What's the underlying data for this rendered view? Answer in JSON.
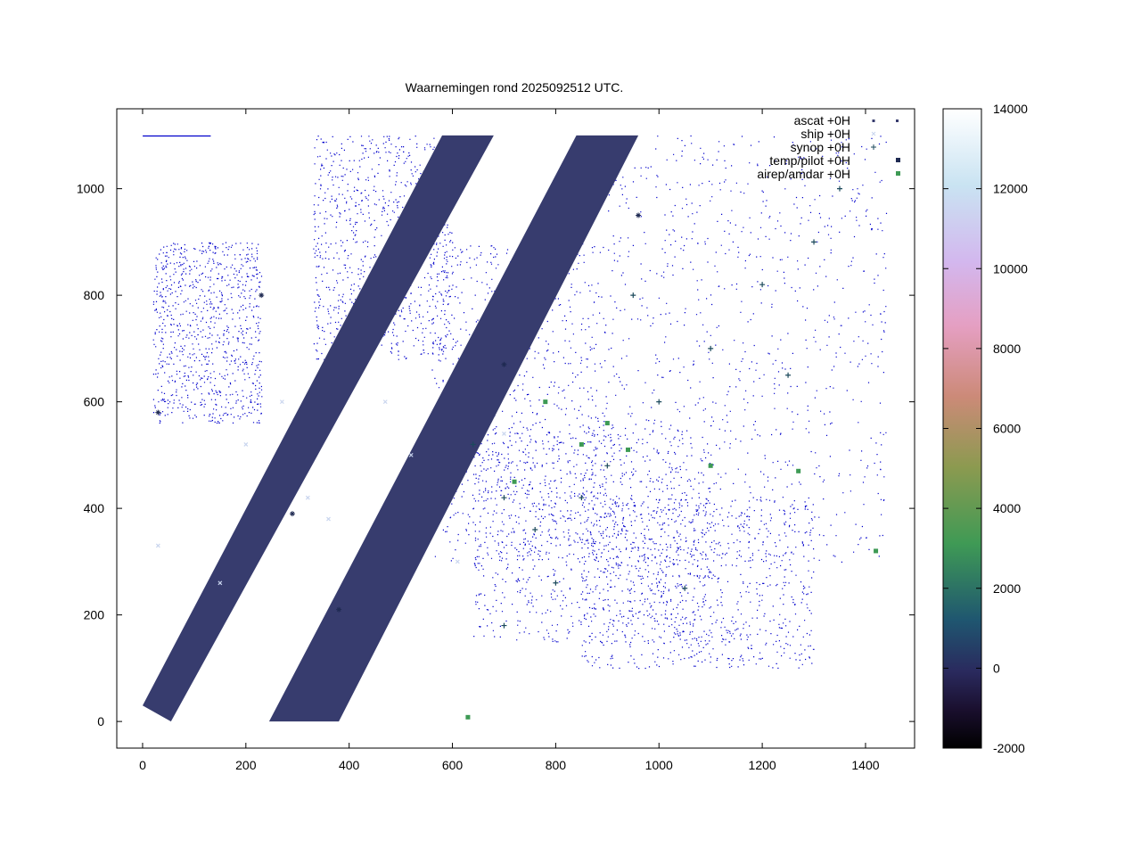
{
  "chart_data": {
    "type": "scatter",
    "title": "Waarnemingen rond 2025092512 UTC.",
    "xlabel": "",
    "ylabel": "",
    "xlim": [
      -50,
      1495
    ],
    "ylim": [
      -50,
      1150
    ],
    "xticks": [
      0,
      200,
      400,
      600,
      800,
      1000,
      1200,
      1400
    ],
    "yticks": [
      0,
      200,
      400,
      600,
      800,
      1000
    ],
    "grid": false,
    "legend_position": "top-right",
    "colorbar": {
      "range": [
        -2000,
        14000
      ],
      "ticks": [
        -2000,
        0,
        2000,
        4000,
        6000,
        8000,
        10000,
        12000,
        14000
      ],
      "palette": "cubehelix"
    },
    "series": [
      {
        "name": "ascat +0H",
        "marker": "dot",
        "color": "#373c6e",
        "swaths": [
          {
            "corners": [
              [
                0,
                30
              ],
              [
                55,
                0
              ],
              [
                680,
                1100
              ],
              [
                580,
                1100
              ]
            ]
          },
          {
            "corners": [
              [
                245,
                0
              ],
              [
                380,
                0
              ],
              [
                960,
                1100
              ],
              [
                840,
                1100
              ]
            ]
          }
        ]
      },
      {
        "name": "ship +0H",
        "marker": "x",
        "color": "#c9d5ee",
        "sample_points": [
          [
            270,
            600
          ],
          [
            320,
            420
          ],
          [
            470,
            600
          ],
          [
            520,
            500
          ],
          [
            150,
            260
          ],
          [
            30,
            330
          ],
          [
            700,
            540
          ],
          [
            360,
            380
          ],
          [
            610,
            300
          ],
          [
            200,
            520
          ]
        ]
      },
      {
        "name": "synop +0H",
        "marker": "plus",
        "color": "#1c4a5c",
        "sample_points": [
          [
            640,
            520
          ],
          [
            700,
            420
          ],
          [
            760,
            360
          ],
          [
            850,
            420
          ],
          [
            900,
            480
          ],
          [
            1000,
            600
          ],
          [
            1100,
            700
          ],
          [
            1200,
            820
          ],
          [
            1300,
            900
          ],
          [
            1350,
            1000
          ],
          [
            950,
            800
          ],
          [
            800,
            260
          ],
          [
            1050,
            250
          ],
          [
            700,
            180
          ],
          [
            1250,
            650
          ]
        ]
      },
      {
        "name": "temp/pilot +0H",
        "marker": "star",
        "color": "#1f2a52",
        "sample_points": [
          [
            30,
            580
          ],
          [
            230,
            800
          ],
          [
            290,
            390
          ],
          [
            700,
            670
          ],
          [
            380,
            210
          ],
          [
            960,
            950
          ]
        ]
      },
      {
        "name": "airep/amdar +0H",
        "marker": "square",
        "color": "#3e9a55",
        "sample_points": [
          [
            630,
            8
          ],
          [
            720,
            450
          ],
          [
            850,
            520
          ],
          [
            940,
            510
          ],
          [
            1100,
            480
          ],
          [
            1270,
            470
          ],
          [
            1420,
            320
          ],
          [
            900,
            560
          ],
          [
            780,
            600
          ]
        ]
      }
    ],
    "coastline_style": {
      "color": "#0000cc"
    }
  }
}
